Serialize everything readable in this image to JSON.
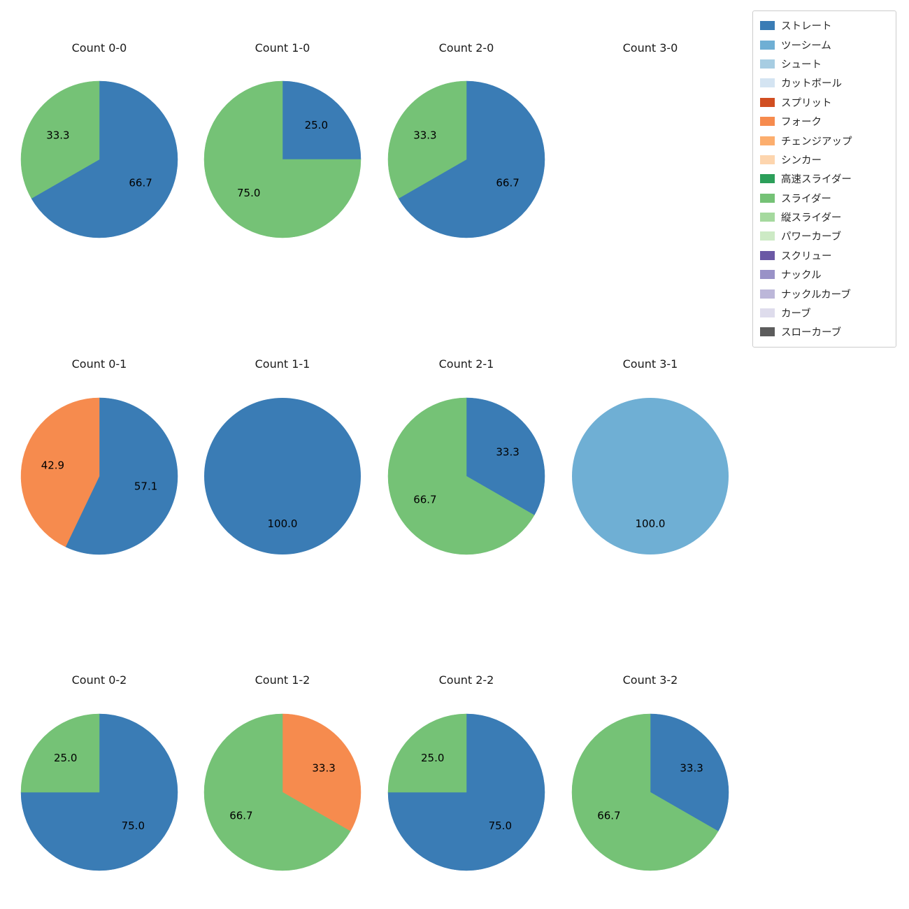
{
  "legend": {
    "position": "upper right",
    "items": [
      {
        "label": "ストレート",
        "color": "#3a7cb5"
      },
      {
        "label": "ツーシーム",
        "color": "#6fafd4"
      },
      {
        "label": "シュート",
        "color": "#a7cde2"
      },
      {
        "label": "カットボール",
        "color": "#d4e4f2"
      },
      {
        "label": "スプリット",
        "color": "#d14e21"
      },
      {
        "label": "フォーク",
        "color": "#f68b4e"
      },
      {
        "label": "チェンジアップ",
        "color": "#fcae6e"
      },
      {
        "label": "シンカー",
        "color": "#fdd5ae"
      },
      {
        "label": "高速スライダー",
        "color": "#2c9f5a"
      },
      {
        "label": "スライダー",
        "color": "#75c276"
      },
      {
        "label": "縦スライダー",
        "color": "#a5d99e"
      },
      {
        "label": "パワーカーブ",
        "color": "#cdeac5"
      },
      {
        "label": "スクリュー",
        "color": "#6b59a5"
      },
      {
        "label": "ナックル",
        "color": "#9992c7"
      },
      {
        "label": "ナックルカーブ",
        "color": "#bcb7d9"
      },
      {
        "label": "カーブ",
        "color": "#dedcec"
      },
      {
        "label": "スローカーブ",
        "color": "#5c5c5c"
      }
    ]
  },
  "chart_data": [
    {
      "type": "pie",
      "title": "Count 0-0",
      "labels": [
        "ストレート",
        "スライダー"
      ],
      "values": [
        66.7,
        33.3
      ],
      "start_angle": "top",
      "direction": "clockwise"
    },
    {
      "type": "pie",
      "title": "Count 1-0",
      "labels": [
        "ストレート",
        "スライダー"
      ],
      "values": [
        25.0,
        75.0
      ],
      "start_angle": "top",
      "direction": "clockwise"
    },
    {
      "type": "pie",
      "title": "Count 2-0",
      "labels": [
        "ストレート",
        "スライダー"
      ],
      "values": [
        66.7,
        33.3
      ],
      "start_angle": "top",
      "direction": "clockwise"
    },
    {
      "type": "pie",
      "title": "Count 3-0",
      "labels": [],
      "values": [],
      "start_angle": "top",
      "direction": "clockwise"
    },
    {
      "type": "pie",
      "title": "Count 0-1",
      "labels": [
        "ストレート",
        "フォーク"
      ],
      "values": [
        57.1,
        42.9
      ],
      "start_angle": "top",
      "direction": "clockwise"
    },
    {
      "type": "pie",
      "title": "Count 1-1",
      "labels": [
        "ストレート"
      ],
      "values": [
        100.0
      ],
      "start_angle": "top",
      "direction": "clockwise"
    },
    {
      "type": "pie",
      "title": "Count 2-1",
      "labels": [
        "ストレート",
        "スライダー"
      ],
      "values": [
        33.3,
        66.7
      ],
      "start_angle": "top",
      "direction": "clockwise"
    },
    {
      "type": "pie",
      "title": "Count 3-1",
      "labels": [
        "ツーシーム"
      ],
      "values": [
        100.0
      ],
      "start_angle": "top",
      "direction": "clockwise"
    },
    {
      "type": "pie",
      "title": "Count 0-2",
      "labels": [
        "ストレート",
        "スライダー"
      ],
      "values": [
        75.0,
        25.0
      ],
      "start_angle": "top",
      "direction": "clockwise"
    },
    {
      "type": "pie",
      "title": "Count 1-2",
      "labels": [
        "フォーク",
        "スライダー"
      ],
      "values": [
        33.3,
        66.7
      ],
      "start_angle": "top",
      "direction": "clockwise"
    },
    {
      "type": "pie",
      "title": "Count 2-2",
      "labels": [
        "ストレート",
        "スライダー"
      ],
      "values": [
        75.0,
        25.0
      ],
      "start_angle": "top",
      "direction": "clockwise"
    },
    {
      "type": "pie",
      "title": "Count 3-2",
      "labels": [
        "ストレート",
        "スライダー"
      ],
      "values": [
        33.3,
        66.7
      ],
      "start_angle": "top",
      "direction": "clockwise"
    }
  ]
}
